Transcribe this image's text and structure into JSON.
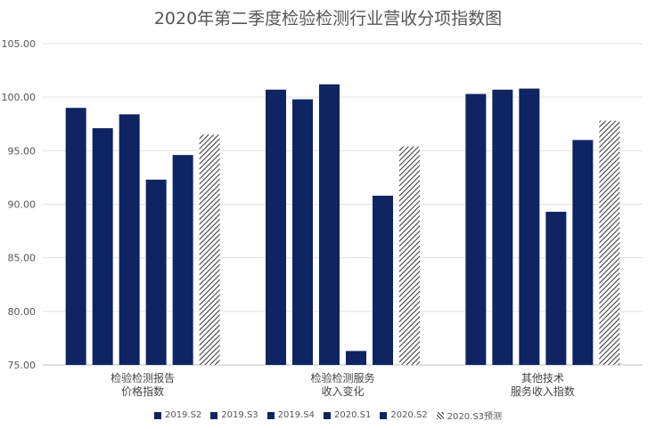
{
  "chart_data": {
    "type": "bar",
    "title": "2020年第二季度检验检测行业营收分项指数图",
    "xlabel": "",
    "ylabel": "",
    "ylim": [
      75,
      105
    ],
    "yticks": [
      "75.00",
      "80.00",
      "85.00",
      "90.00",
      "95.00",
      "100.00",
      "105.00"
    ],
    "grid": true,
    "legend_position": "bottom",
    "categories": [
      [
        "检验检测报告",
        "价格指数"
      ],
      [
        "检验检测服务",
        "收入变化"
      ],
      [
        "其他技术",
        "服务收入指数"
      ]
    ],
    "series": [
      {
        "name": "2019.S2",
        "values": [
          99.0,
          100.7,
          100.3
        ],
        "color": "#0f2462",
        "pattern": "solid"
      },
      {
        "name": "2019.S3",
        "values": [
          97.1,
          99.8,
          100.7
        ],
        "color": "#0f2462",
        "pattern": "solid"
      },
      {
        "name": "2019.S4",
        "values": [
          98.4,
          101.2,
          100.8
        ],
        "color": "#0f2462",
        "pattern": "solid"
      },
      {
        "name": "2020.S1",
        "values": [
          92.3,
          76.3,
          89.3
        ],
        "color": "#0f2462",
        "pattern": "solid"
      },
      {
        "name": "2020.S2",
        "values": [
          94.6,
          90.8,
          96.0
        ],
        "color": "#0f2462",
        "pattern": "solid"
      },
      {
        "name": "2020.S3预测",
        "values": [
          96.5,
          95.4,
          97.8
        ],
        "color": "#333333",
        "pattern": "hatched"
      }
    ]
  }
}
